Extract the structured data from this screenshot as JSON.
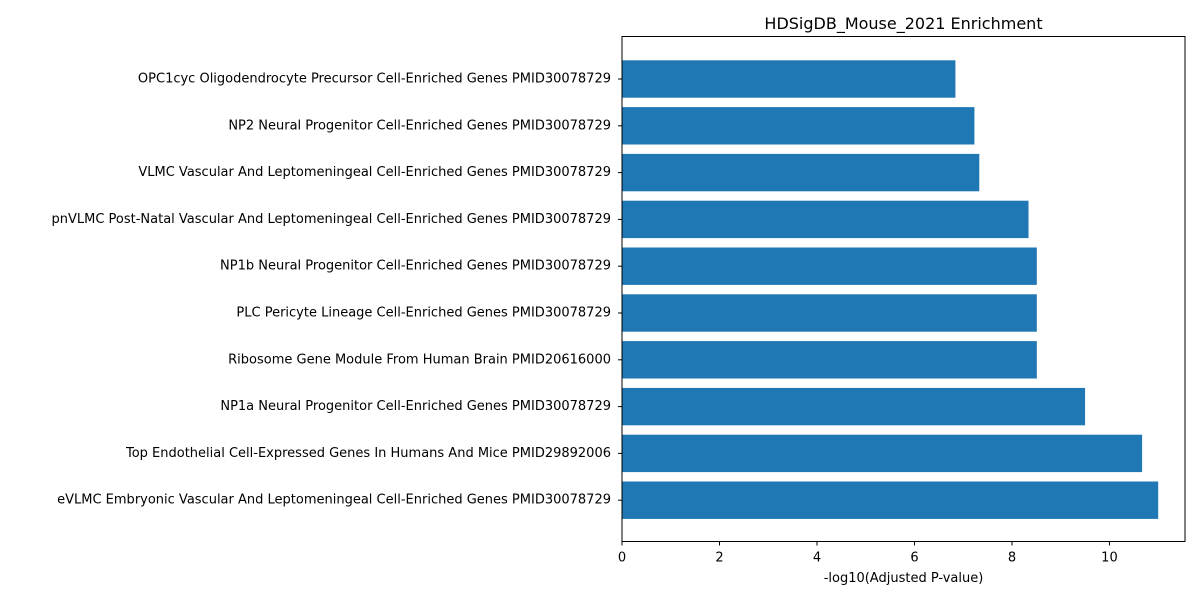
{
  "chart_data": {
    "type": "bar",
    "orientation": "horizontal",
    "title": "HDSigDB_Mouse_2021 Enrichment",
    "xlabel": "-log10(Adjusted P-value)",
    "ylabel": "",
    "xlim": [
      0,
      11.55
    ],
    "xticks": [
      0,
      2,
      4,
      6,
      8,
      10
    ],
    "grid": false,
    "bar_color": "#1f77b4",
    "categories": [
      "OPC1cyc Oligodendrocyte Precursor Cell-Enriched Genes PMID30078729",
      "NP2 Neural Progenitor Cell-Enriched Genes PMID30078729",
      "VLMC Vascular And Leptomeningeal Cell-Enriched Genes PMID30078729",
      "pnVLMC Post-Natal Vascular And Leptomeningeal Cell-Enriched Genes PMID30078729",
      "NP1b Neural Progenitor Cell-Enriched Genes PMID30078729",
      "PLC Pericyte Lineage Cell-Enriched Genes PMID30078729",
      "Ribosome Gene Module From Human Brain PMID20616000",
      "NP1a Neural Progenitor Cell-Enriched Genes PMID30078729",
      "Top Endothelial Cell-Expressed Genes In Humans And Mice PMID29892006",
      "eVLMC Embryonic Vascular And Leptomeningeal Cell-Enriched Genes PMID30078729"
    ],
    "values": [
      6.84,
      7.23,
      7.33,
      8.34,
      8.51,
      8.51,
      8.51,
      9.5,
      10.67,
      11.0
    ]
  }
}
